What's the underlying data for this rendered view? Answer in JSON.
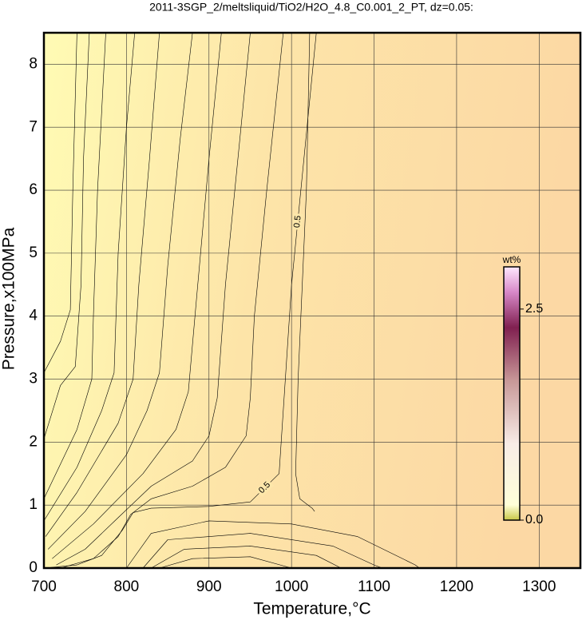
{
  "chart_data": {
    "type": "contour",
    "title": "2011-3SGP_2/meltsliquid/TiO2/H2O_4.8_C0.001_2_PT, dz=0.05:",
    "xlabel": "Temperature,°C",
    "ylabel": "Pressure,x100MPa",
    "xlim": [
      700,
      1350
    ],
    "ylim": [
      0,
      8.5
    ],
    "xticks": [
      700,
      800,
      900,
      1000,
      1100,
      1200,
      1300
    ],
    "yticks": [
      0,
      1,
      2,
      3,
      4,
      5,
      6,
      7,
      8
    ],
    "grid": true,
    "colorbar": {
      "label": "wt%",
      "lim": [
        0,
        3
      ],
      "ticks": [
        {
          "value": 0,
          "label": "0.0"
        },
        2.5
      ]
    },
    "contours": [
      {
        "level": 0.5,
        "x": [
          700,
          740,
          770,
          795,
          808,
          830,
          900,
          950,
          985,
          1000,
          1015,
          1030
        ],
        "y": [
          0,
          0.05,
          0.2,
          0.6,
          0.88,
          0.95,
          0.98,
          1.05,
          1.5,
          4.5,
          6.5,
          8.5
        ]
      },
      {
        "x": [
          720,
          760,
          790,
          805,
          830,
          880,
          920,
          945,
          950,
          955,
          970,
          990
        ],
        "y": [
          0,
          0.15,
          0.5,
          0.85,
          1.1,
          1.3,
          1.6,
          2.1,
          2.7,
          4,
          6,
          8.5
        ]
      },
      {
        "x": [
          715,
          750,
          790,
          830,
          880,
          900,
          910,
          920,
          935,
          950
        ],
        "y": [
          0.05,
          0.3,
          0.8,
          1.3,
          1.7,
          2.1,
          2.7,
          4.5,
          6.5,
          8.5
        ]
      },
      {
        "x": [
          710,
          760,
          820,
          860,
          875,
          885,
          900,
          915
        ],
        "y": [
          0.15,
          0.7,
          1.5,
          2.2,
          2.8,
          4.3,
          6.5,
          8.5
        ]
      },
      {
        "x": [
          705,
          750,
          800,
          825,
          840,
          850,
          865,
          880
        ],
        "y": [
          0.3,
          0.9,
          1.8,
          2.5,
          3.1,
          4.8,
          6.8,
          8.5
        ]
      },
      {
        "x": [
          702,
          740,
          790,
          808,
          815,
          828,
          840
        ],
        "y": [
          0.5,
          1.2,
          2.3,
          3,
          4.5,
          6.5,
          8.5
        ]
      },
      {
        "x": [
          700,
          740,
          770,
          785,
          790,
          800,
          810
        ],
        "y": [
          0.75,
          1.6,
          2.5,
          3.1,
          5,
          7,
          8.5
        ]
      },
      {
        "x": [
          700,
          740,
          758,
          760,
          765,
          775
        ],
        "y": [
          1.1,
          2.2,
          3,
          4,
          6,
          8.5
        ]
      },
      {
        "x": [
          700,
          720,
          738,
          745,
          748,
          755
        ],
        "y": [
          2.05,
          2.9,
          3.2,
          4.5,
          6.5,
          8.5
        ]
      },
      {
        "x": [
          700,
          720,
          732,
          735,
          740
        ],
        "y": [
          3.1,
          3.6,
          4.1,
          6,
          8.5
        ]
      },
      {
        "x": [
          1022,
          1018,
          1008,
          1005,
          1010,
          1025,
          1028
        ],
        "y": [
          8.5,
          6,
          3,
          1.5,
          1.1,
          0.95,
          0.9
        ]
      },
      {
        "x": [
          800,
          830,
          900,
          1000,
          1080,
          1150,
          1155
        ],
        "y": [
          0,
          0.55,
          0.75,
          0.7,
          0.5,
          0.05,
          0
        ]
      },
      {
        "x": [
          820,
          850,
          950,
          1050,
          1100,
          1110
        ],
        "y": [
          0,
          0.45,
          0.55,
          0.35,
          0.05,
          0
        ]
      },
      {
        "x": [
          830,
          870,
          950,
          1030,
          1060
        ],
        "y": [
          0,
          0.3,
          0.35,
          0.2,
          0
        ]
      },
      {
        "x": [
          840,
          880,
          950,
          1000
        ],
        "y": [
          0,
          0.15,
          0.18,
          0
        ]
      }
    ]
  }
}
